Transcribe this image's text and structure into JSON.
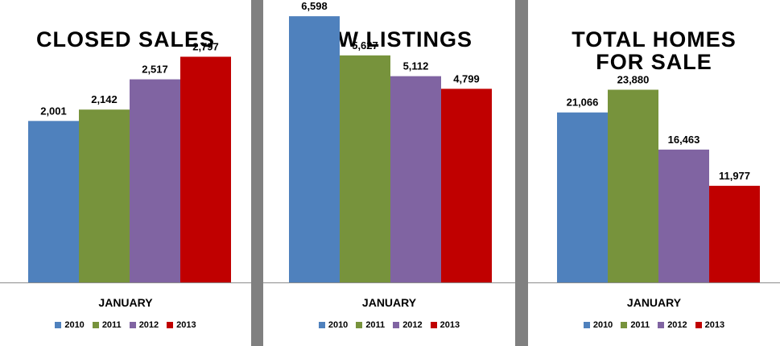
{
  "chart_data": [
    {
      "type": "bar",
      "title": "CLOSED SALES",
      "categories": [
        "JANUARY"
      ],
      "series": [
        {
          "name": "2010",
          "values": [
            2001
          ],
          "label": "2,001",
          "color": "#4F81BD"
        },
        {
          "name": "2011",
          "values": [
            2142
          ],
          "label": "2,142",
          "color": "#77933C"
        },
        {
          "name": "2012",
          "values": [
            2517
          ],
          "label": "2,517",
          "color": "#8064A2"
        },
        {
          "name": "2013",
          "values": [
            2797
          ],
          "label": "2,797",
          "color": "#C00000"
        }
      ],
      "ylim": [
        0,
        3500
      ],
      "grid": false,
      "legend_position": "bottom"
    },
    {
      "type": "bar",
      "title": "NEW LISTINGS",
      "categories": [
        "JANUARY"
      ],
      "series": [
        {
          "name": "2010",
          "values": [
            6598
          ],
          "label": "6,598",
          "color": "#4F81BD"
        },
        {
          "name": "2011",
          "values": [
            5627
          ],
          "label": "5,627",
          "color": "#77933C"
        },
        {
          "name": "2012",
          "values": [
            5112
          ],
          "label": "5,112",
          "color": "#8064A2"
        },
        {
          "name": "2013",
          "values": [
            4799
          ],
          "label": "4,799",
          "color": "#C00000"
        }
      ],
      "ylim": [
        0,
        7000
      ],
      "grid": false,
      "legend_position": "bottom"
    },
    {
      "type": "bar",
      "title": "TOTAL HOMES FOR SALE",
      "title_lines": [
        "TOTAL HOMES",
        "FOR SALE"
      ],
      "categories": [
        "JANUARY"
      ],
      "series": [
        {
          "name": "2010",
          "values": [
            21066
          ],
          "label": "21,066",
          "color": "#4F81BD"
        },
        {
          "name": "2011",
          "values": [
            23880
          ],
          "label": "23,880",
          "color": "#77933C"
        },
        {
          "name": "2012",
          "values": [
            16463
          ],
          "label": "16,463",
          "color": "#8064A2"
        },
        {
          "name": "2013",
          "values": [
            11977
          ],
          "label": "11,977",
          "color": "#C00000"
        }
      ],
      "ylim": [
        0,
        35000
      ],
      "grid": false,
      "legend_position": "bottom"
    }
  ]
}
